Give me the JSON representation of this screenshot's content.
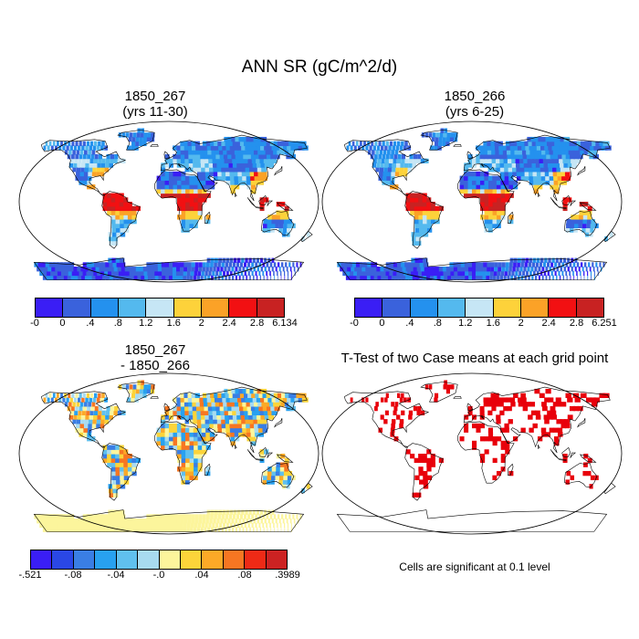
{
  "figure": {
    "title": "ANN SR (gC/m^2/d)"
  },
  "panels": {
    "case1": {
      "title_line1": "1850_267",
      "title_line2": "(yrs 11-30)"
    },
    "case2": {
      "title_line1": "1850_266",
      "title_line2": "(yrs 6-25)"
    },
    "diff": {
      "title_line1": "1850_267",
      "title_line2": "- 1850_266"
    },
    "ttest": {
      "title": "T-Test of two Case means at each grid point",
      "note": "Cells are significant at 0.1 level",
      "significant_color": "#e8000b"
    }
  },
  "colorbars": {
    "case1": {
      "colors": [
        "#3a1ef5",
        "#3a62dc",
        "#2491ee",
        "#54b9ee",
        "#c6e6f5",
        "#fdd23a",
        "#fba227",
        "#f21012",
        "#c82222"
      ],
      "labels": [
        "-0",
        "0",
        ".4",
        ".8",
        "1.2",
        "1.6",
        "2",
        "2.4",
        "2.8",
        "6.134"
      ]
    },
    "case2": {
      "colors": [
        "#3a1ef5",
        "#3a62dc",
        "#2491ee",
        "#54b9ee",
        "#c6e6f5",
        "#fdd23a",
        "#fba227",
        "#f21012",
        "#c82222"
      ],
      "labels": [
        "-0",
        "0",
        ".4",
        ".8",
        "1.2",
        "1.6",
        "2",
        "2.4",
        "2.8",
        "6.251"
      ]
    },
    "diff": {
      "colors": [
        "#3a1ef5",
        "#2a47e5",
        "#3a7ee4",
        "#28a1f0",
        "#60c0ee",
        "#a8dbf0",
        "#fcf59c",
        "#fcd43a",
        "#fca927",
        "#f77622",
        "#ee2a16",
        "#cc2222"
      ],
      "labels": [
        "-.521",
        "-.08",
        "-.04",
        "-.0",
        ".04",
        ".08",
        ".3989"
      ]
    }
  }
}
